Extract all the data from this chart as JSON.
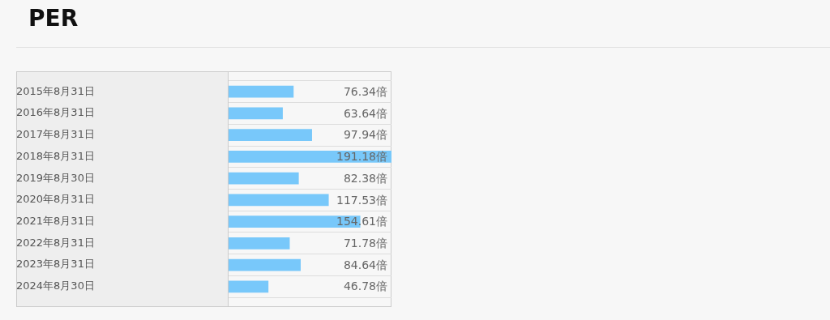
{
  "chart_data": {
    "type": "bar",
    "orientation": "horizontal",
    "title": "PER",
    "grid": "y",
    "legend": false,
    "categories": [
      "2015年8月31日",
      "2016年8月31日",
      "2017年8月31日",
      "2018年8月31日",
      "2019年8月30日",
      "2020年8月31日",
      "2021年8月31日",
      "2022年8月31日",
      "2023年8月31日",
      "2024年8月30日"
    ],
    "values": [
      76.34,
      63.64,
      97.94,
      191.18,
      82.38,
      117.53,
      154.61,
      71.78,
      84.64,
      46.78
    ],
    "value_labels": [
      "76.34倍",
      "63.64倍",
      "97.94倍",
      "191.18倍",
      "82.38倍",
      "117.53倍",
      "154.61倍",
      "71.78倍",
      "84.64倍",
      "46.78倍"
    ],
    "color": "#78c8fa"
  }
}
